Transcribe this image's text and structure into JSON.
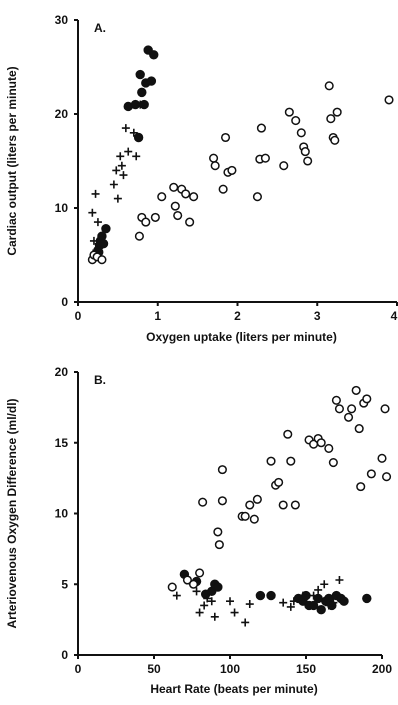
{
  "chart_data": [
    {
      "type": "scatter",
      "panel_label": "A.",
      "xlabel": "Oxygen uptake (liters per minute)",
      "ylabel": "Cardiac output (liters per minute)",
      "xlim": [
        0,
        4
      ],
      "ylim": [
        0,
        30
      ],
      "xticks": [
        "0",
        "1",
        "2",
        "3",
        "4"
      ],
      "yticks": [
        "0",
        "10",
        "20",
        "30"
      ],
      "grid": false,
      "series": [
        {
          "marker": "filled-circle",
          "points": [
            [
              0.22,
              5.0
            ],
            [
              0.25,
              5.5
            ],
            [
              0.27,
              6.0
            ],
            [
              0.28,
              6.5
            ],
            [
              0.3,
              7.0
            ],
            [
              0.32,
              6.2
            ],
            [
              0.35,
              7.8
            ],
            [
              0.26,
              5.3
            ],
            [
              0.63,
              20.8
            ],
            [
              0.72,
              21.0
            ],
            [
              0.76,
              17.5
            ],
            [
              0.78,
              24.2
            ],
            [
              0.8,
              22.3
            ],
            [
              0.83,
              21.0
            ],
            [
              0.85,
              23.3
            ],
            [
              0.88,
              26.8
            ],
            [
              0.92,
              23.5
            ],
            [
              0.95,
              26.3
            ]
          ]
        },
        {
          "marker": "plus",
          "points": [
            [
              0.18,
              9.5
            ],
            [
              0.22,
              11.5
            ],
            [
              0.25,
              8.5
            ],
            [
              0.2,
              6.5
            ],
            [
              0.23,
              5.5
            ],
            [
              0.26,
              6.2
            ],
            [
              0.45,
              12.5
            ],
            [
              0.48,
              14.0
            ],
            [
              0.5,
              11.0
            ],
            [
              0.53,
              15.5
            ],
            [
              0.55,
              14.5
            ],
            [
              0.57,
              13.5
            ],
            [
              0.6,
              18.5
            ],
            [
              0.63,
              16.0
            ],
            [
              0.7,
              18.0
            ],
            [
              0.73,
              15.5
            ],
            [
              0.78,
              21.0
            ]
          ]
        },
        {
          "marker": "open-circle",
          "points": [
            [
              0.18,
              4.5
            ],
            [
              0.2,
              5.0
            ],
            [
              0.24,
              4.8
            ],
            [
              0.3,
              4.5
            ],
            [
              0.77,
              7.0
            ],
            [
              0.8,
              9.0
            ],
            [
              0.85,
              8.5
            ],
            [
              0.97,
              9.0
            ],
            [
              1.05,
              11.2
            ],
            [
              1.2,
              12.2
            ],
            [
              1.22,
              10.2
            ],
            [
              1.25,
              9.2
            ],
            [
              1.3,
              12.0
            ],
            [
              1.35,
              11.5
            ],
            [
              1.4,
              8.5
            ],
            [
              1.45,
              11.2
            ],
            [
              1.7,
              15.3
            ],
            [
              1.72,
              14.5
            ],
            [
              1.82,
              12.0
            ],
            [
              1.85,
              17.5
            ],
            [
              1.88,
              13.8
            ],
            [
              1.93,
              14.0
            ],
            [
              2.25,
              11.2
            ],
            [
              2.28,
              15.2
            ],
            [
              2.3,
              18.5
            ],
            [
              2.35,
              15.3
            ],
            [
              2.58,
              14.5
            ],
            [
              2.65,
              20.2
            ],
            [
              2.73,
              19.3
            ],
            [
              2.8,
              18.0
            ],
            [
              2.83,
              16.5
            ],
            [
              2.85,
              16.0
            ],
            [
              2.88,
              15.0
            ],
            [
              3.15,
              23.0
            ],
            [
              3.17,
              19.5
            ],
            [
              3.2,
              17.5
            ],
            [
              3.22,
              17.2
            ],
            [
              3.25,
              20.2
            ],
            [
              3.9,
              21.5
            ]
          ]
        }
      ]
    },
    {
      "type": "scatter",
      "panel_label": "B.",
      "xlabel": "Heart Rate (beats per minute)",
      "ylabel": "Arteriovenous Oxygen Difference (ml/dl)",
      "xlim": [
        0,
        200
      ],
      "ylim": [
        0,
        20
      ],
      "xticks": [
        "0",
        "50",
        "100",
        "150",
        "200"
      ],
      "yticks": [
        "0",
        "5",
        "10",
        "15",
        "20"
      ],
      "grid": false,
      "series": [
        {
          "marker": "filled-circle",
          "points": [
            [
              70,
              5.7
            ],
            [
              78,
              5.2
            ],
            [
              84,
              4.3
            ],
            [
              88,
              4.5
            ],
            [
              90,
              5.0
            ],
            [
              92,
              4.8
            ],
            [
              120,
              4.2
            ],
            [
              127,
              4.2
            ],
            [
              145,
              4.0
            ],
            [
              148,
              3.8
            ],
            [
              150,
              4.2
            ],
            [
              152,
              3.5
            ],
            [
              155,
              3.5
            ],
            [
              158,
              4.0
            ],
            [
              160,
              3.2
            ],
            [
              163,
              3.8
            ],
            [
              165,
              4.0
            ],
            [
              167,
              3.5
            ],
            [
              170,
              4.2
            ],
            [
              173,
              4.0
            ],
            [
              175,
              3.8
            ],
            [
              190,
              4.0
            ]
          ]
        },
        {
          "marker": "plus",
          "points": [
            [
              65,
              4.2
            ],
            [
              78,
              4.5
            ],
            [
              80,
              3.0
            ],
            [
              83,
              3.5
            ],
            [
              85,
              4.0
            ],
            [
              88,
              3.8
            ],
            [
              90,
              2.7
            ],
            [
              100,
              3.8
            ],
            [
              103,
              3.0
            ],
            [
              110,
              2.3
            ],
            [
              113,
              3.6
            ],
            [
              135,
              3.7
            ],
            [
              140,
              3.4
            ],
            [
              142,
              3.8
            ],
            [
              148,
              4.2
            ],
            [
              155,
              4.2
            ],
            [
              158,
              4.6
            ],
            [
              162,
              5.0
            ],
            [
              165,
              3.5
            ],
            [
              168,
              3.7
            ],
            [
              172,
              5.3
            ]
          ]
        },
        {
          "marker": "open-circle",
          "points": [
            [
              62,
              4.8
            ],
            [
              72,
              5.3
            ],
            [
              76,
              5.0
            ],
            [
              80,
              5.8
            ],
            [
              82,
              10.8
            ],
            [
              92,
              8.7
            ],
            [
              93,
              7.8
            ],
            [
              95,
              10.9
            ],
            [
              95,
              13.1
            ],
            [
              108,
              9.8
            ],
            [
              110,
              9.8
            ],
            [
              113,
              10.6
            ],
            [
              116,
              9.6
            ],
            [
              118,
              11.0
            ],
            [
              127,
              13.7
            ],
            [
              130,
              12.0
            ],
            [
              132,
              12.2
            ],
            [
              135,
              10.6
            ],
            [
              138,
              15.6
            ],
            [
              140,
              13.7
            ],
            [
              143,
              10.6
            ],
            [
              152,
              15.2
            ],
            [
              155,
              14.9
            ],
            [
              158,
              15.3
            ],
            [
              160,
              15.0
            ],
            [
              165,
              14.6
            ],
            [
              168,
              13.6
            ],
            [
              170,
              18.0
            ],
            [
              172,
              17.4
            ],
            [
              178,
              16.8
            ],
            [
              180,
              17.4
            ],
            [
              183,
              18.7
            ],
            [
              185,
              16.0
            ],
            [
              186,
              11.9
            ],
            [
              188,
              17.8
            ],
            [
              190,
              18.1
            ],
            [
              193,
              12.8
            ],
            [
              200,
              13.9
            ],
            [
              202,
              17.4
            ],
            [
              203,
              12.6
            ]
          ]
        }
      ]
    }
  ]
}
